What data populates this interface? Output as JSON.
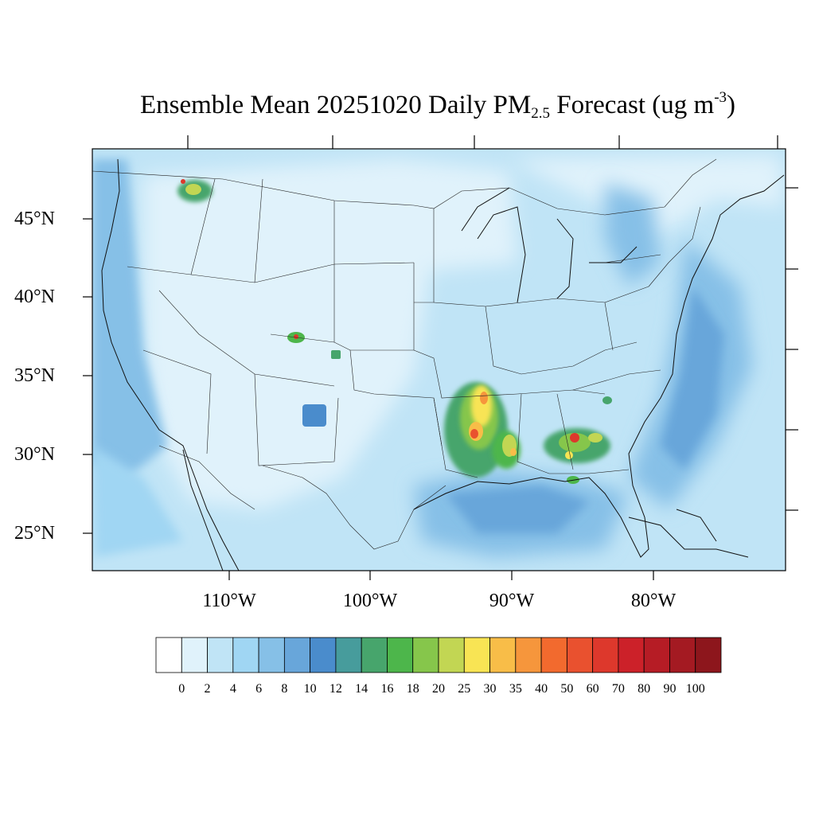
{
  "title": {
    "main": "Ensemble Mean 20251020 Daily PM",
    "subscript": "2.5",
    "after": " Forecast (ug m",
    "superscript": "-3",
    "close": ")"
  },
  "map": {
    "lat_labels": [
      "45°N",
      "40°N",
      "35°N",
      "30°N",
      "25°N"
    ],
    "lon_labels": [
      "110°W",
      "100°W",
      "90°W",
      "80°W"
    ]
  },
  "colorbar": {
    "labels": [
      "0",
      "2",
      "4",
      "6",
      "8",
      "10",
      "12",
      "14",
      "16",
      "18",
      "20",
      "25",
      "30",
      "35",
      "40",
      "50",
      "60",
      "70",
      "80",
      "90",
      "100"
    ],
    "colors": [
      "#ffffff",
      "#e0f2fb",
      "#c0e4f6",
      "#a0d6f3",
      "#86c0e7",
      "#68a6da",
      "#4a8ccc",
      "#479c9c",
      "#47a56c",
      "#4db64b",
      "#86c64b",
      "#c2d653",
      "#f8e454",
      "#f8bd48",
      "#f6963c",
      "#f26a2e",
      "#e9512f",
      "#dd382c",
      "#cc2129",
      "#b61c25",
      "#a41a22",
      "#8d161c"
    ]
  }
}
